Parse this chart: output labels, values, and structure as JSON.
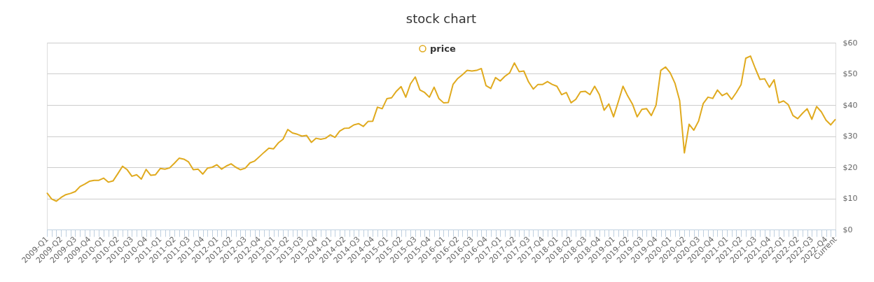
{
  "chart_data": {
    "type": "line",
    "title": "stock chart",
    "categories": [
      "2009-Q1",
      null,
      null,
      "2009-Q2",
      null,
      null,
      "2009-Q3",
      null,
      null,
      "2009-Q4",
      null,
      null,
      "2010-Q1",
      null,
      null,
      "2010-Q2",
      null,
      null,
      "2010-Q3",
      null,
      null,
      "2010-Q4",
      null,
      null,
      "2011-Q1",
      null,
      null,
      "2011-Q2",
      null,
      null,
      "2011-Q3",
      null,
      null,
      "2011-Q4",
      null,
      null,
      "2012-Q1",
      null,
      null,
      "2012-Q2",
      null,
      null,
      "2012-Q3",
      null,
      null,
      "2012-Q4",
      null,
      null,
      "2013-Q1",
      null,
      null,
      "2013-Q2",
      null,
      null,
      "2013-Q3",
      null,
      null,
      "2013-Q4",
      null,
      null,
      "2014-Q1",
      null,
      null,
      "2014-Q2",
      null,
      null,
      "2014-Q3",
      null,
      null,
      "2014-Q4",
      null,
      null,
      "2015-Q1",
      null,
      null,
      "2015-Q2",
      null,
      null,
      "2015-Q3",
      null,
      null,
      "2015-Q4",
      null,
      null,
      "2016-Q1",
      null,
      null,
      "2016-Q2",
      null,
      null,
      "2016-Q3",
      null,
      null,
      "2016-Q4",
      null,
      null,
      "2017-Q1",
      null,
      null,
      "2017-Q2",
      null,
      null,
      "2017-Q3",
      null,
      null,
      "2017-Q4",
      null,
      null,
      "2018-Q1",
      null,
      null,
      "2018-Q2",
      null,
      null,
      "2018-Q3",
      null,
      null,
      "2018-Q4",
      null,
      null,
      "2019-Q1",
      null,
      null,
      "2019-Q2",
      null,
      null,
      "2019-Q3",
      null,
      null,
      "2019-Q4",
      null,
      null,
      "2020-Q1",
      null,
      null,
      "2020-Q2",
      null,
      null,
      "2020-Q3",
      null,
      null,
      "2020-Q4",
      null,
      null,
      "2021-Q1",
      null,
      null,
      "2021-Q2",
      null,
      null,
      "2021-Q3",
      null,
      null,
      "2021-Q4",
      null,
      null,
      "2022-Q1",
      null,
      null,
      "2022-Q2",
      null,
      null,
      "2022-Q3",
      null,
      null,
      "2022-Q4",
      null,
      "Current"
    ],
    "series": [
      {
        "name": "price",
        "color": "#e0aa1e",
        "values": [
          11.8,
          9.8,
          9.1,
          10.3,
          11.2,
          11.6,
          12.2,
          13.8,
          14.6,
          15.5,
          15.8,
          15.8,
          16.5,
          15.2,
          15.6,
          17.9,
          20.3,
          19.2,
          17.1,
          17.6,
          16.2,
          19.3,
          17.4,
          17.6,
          19.6,
          19.4,
          19.8,
          21.3,
          22.9,
          22.6,
          21.7,
          19.2,
          19.4,
          17.8,
          19.7,
          20.0,
          20.8,
          19.4,
          20.4,
          21.1,
          20.0,
          19.2,
          19.7,
          21.4,
          22.0,
          23.4,
          24.8,
          26.1,
          25.9,
          27.8,
          29.0,
          32.1,
          31.0,
          30.6,
          30.0,
          30.2,
          28.0,
          29.3,
          29.0,
          29.3,
          30.4,
          29.6,
          31.6,
          32.5,
          32.6,
          33.6,
          34.0,
          33.1,
          34.7,
          34.8,
          39.3,
          38.8,
          42.0,
          42.3,
          44.4,
          45.9,
          42.5,
          46.8,
          49.0,
          44.8,
          44.0,
          42.5,
          45.7,
          42.1,
          40.7,
          40.8,
          46.6,
          48.5,
          49.7,
          51.1,
          50.9,
          51.1,
          51.7,
          46.2,
          45.3,
          48.8,
          47.7,
          49.2,
          50.3,
          53.5,
          50.7,
          50.9,
          47.4,
          45.1,
          46.6,
          46.6,
          47.5,
          46.6,
          46.0,
          43.3,
          44.0,
          40.7,
          41.8,
          44.2,
          44.4,
          43.3,
          46.0,
          43.3,
          38.3,
          40.3,
          36.2,
          41.0,
          46.0,
          42.9,
          40.3,
          36.2,
          38.6,
          38.8,
          36.6,
          39.9,
          51.1,
          52.2,
          50.3,
          47.0,
          41.4,
          24.6,
          33.8,
          31.9,
          34.8,
          40.5,
          42.5,
          42.1,
          44.8,
          43.0,
          43.8,
          41.8,
          44.0,
          46.5,
          55.0,
          55.7,
          51.8,
          48.2,
          48.4,
          45.7,
          48.1,
          40.7,
          41.3,
          40.1,
          36.6,
          35.6,
          37.3,
          38.8,
          35.4,
          39.5,
          37.8,
          35.1,
          33.6,
          35.4
        ]
      }
    ],
    "ylim": [
      0,
      60
    ],
    "yticks": [
      {
        "value": 0,
        "label": "$0"
      },
      {
        "value": 10,
        "label": "$10"
      },
      {
        "value": 20,
        "label": "$20"
      },
      {
        "value": 30,
        "label": "$30"
      },
      {
        "value": 40,
        "label": "$40"
      },
      {
        "value": 50,
        "label": "$50"
      },
      {
        "value": 60,
        "label": "$60"
      }
    ],
    "grid": "y",
    "legend": "top",
    "marker": "none",
    "line_style": "solid"
  }
}
